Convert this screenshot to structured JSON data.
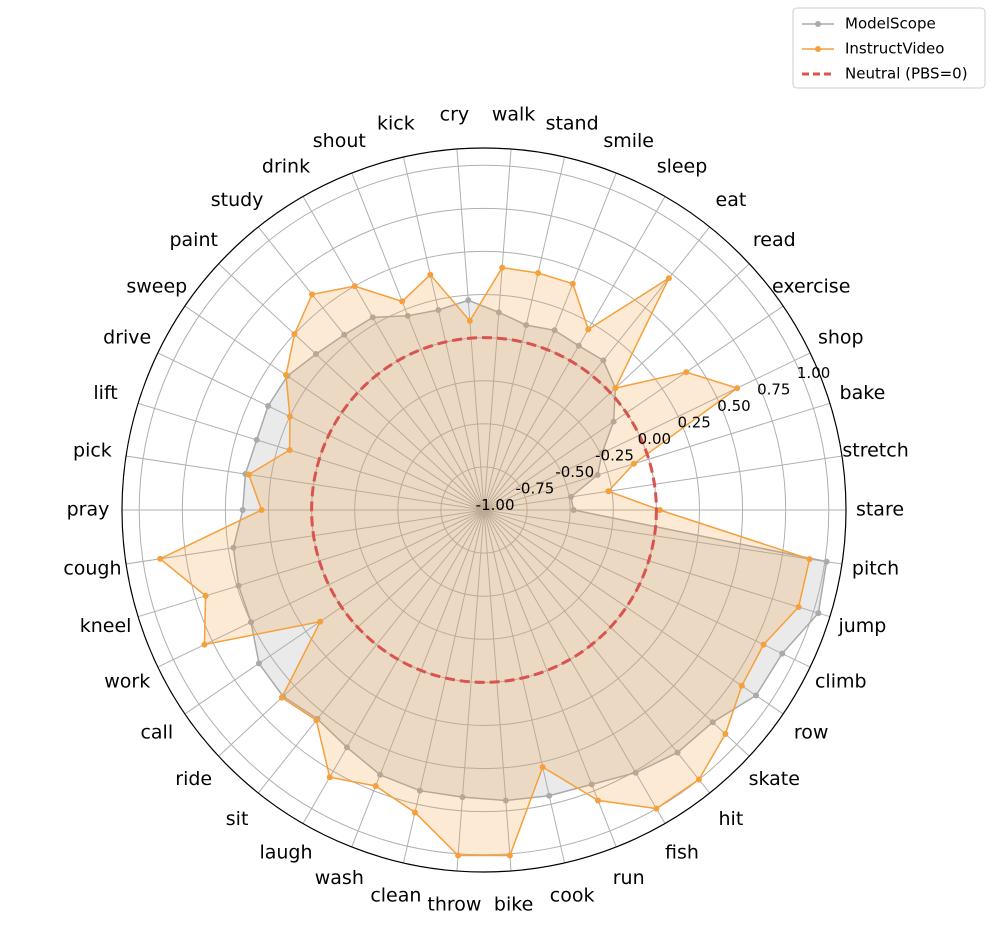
{
  "chart_data": {
    "type": "radar",
    "categories": [
      "stare",
      "stretch",
      "bake",
      "shop",
      "exercise",
      "read",
      "eat",
      "sleep",
      "smile",
      "stand",
      "walk",
      "cry",
      "kick",
      "shout",
      "drink",
      "study",
      "paint",
      "sweep",
      "drive",
      "lift",
      "pick",
      "pray",
      "cough",
      "kneel",
      "work",
      "call",
      "ride",
      "sit",
      "laugh",
      "wash",
      "clean",
      "throw",
      "bike",
      "cook",
      "run",
      "fish",
      "hit",
      "skate",
      "row",
      "climb",
      "jump",
      "pitch"
    ],
    "series": [
      {
        "name": "ModelScope",
        "color": "#aaaaaa",
        "values": [
          -0.48,
          -0.49,
          -0.31,
          -0.24,
          -0.09,
          0.04,
          0.11,
          0.1,
          0.12,
          0.1,
          0.15,
          0.22,
          0.19,
          0.21,
          0.29,
          0.3,
          0.33,
          0.38,
          0.39,
          0.38,
          0.4,
          0.4,
          0.47,
          0.49,
          0.5,
          0.58,
          0.59,
          0.55,
          0.59,
          0.65,
          0.67,
          0.67,
          0.69,
          0.7,
          0.71,
          0.76,
          0.8,
          0.81,
          0.91,
          0.92,
          1.03,
          1.01
        ]
      },
      {
        "name": "InstructVideo",
        "color": "#f5a03c",
        "values": [
          0.02,
          -0.27,
          -0.09,
          0.63,
          0.42,
          0.04,
          0.72,
          0.21,
          0.41,
          0.41,
          0.41,
          0.1,
          0.4,
          0.3,
          0.5,
          0.6,
          0.5,
          0.39,
          0.25,
          0.18,
          0.38,
          0.29,
          0.9,
          0.69,
          0.8,
          0.15,
          0.6,
          0.56,
          0.79,
          0.72,
          0.8,
          1.01,
          1.01,
          0.53,
          0.81,
          1.0,
          1.0,
          0.91,
          0.81,
          0.8,
          0.91,
          0.91
        ]
      }
    ],
    "neutral": {
      "name": "Neutral (PBS=0)",
      "value": 0,
      "color": "#d9534f"
    },
    "rlim": [
      -1,
      1.1
    ],
    "rticks": [
      {
        "value": -1,
        "label": "-1.00"
      },
      {
        "value": -0.75,
        "label": "-0.75"
      },
      {
        "value": -0.5,
        "label": "-0.50"
      },
      {
        "value": -0.25,
        "label": "-0.25"
      },
      {
        "value": 0,
        "label": "0.00"
      },
      {
        "value": 0.25,
        "label": "0.25"
      },
      {
        "value": 0.5,
        "label": "0.50"
      },
      {
        "value": 0.75,
        "label": "0.75"
      },
      {
        "value": 1,
        "label": "1.00"
      }
    ],
    "grid": true,
    "legend": "upper right"
  }
}
